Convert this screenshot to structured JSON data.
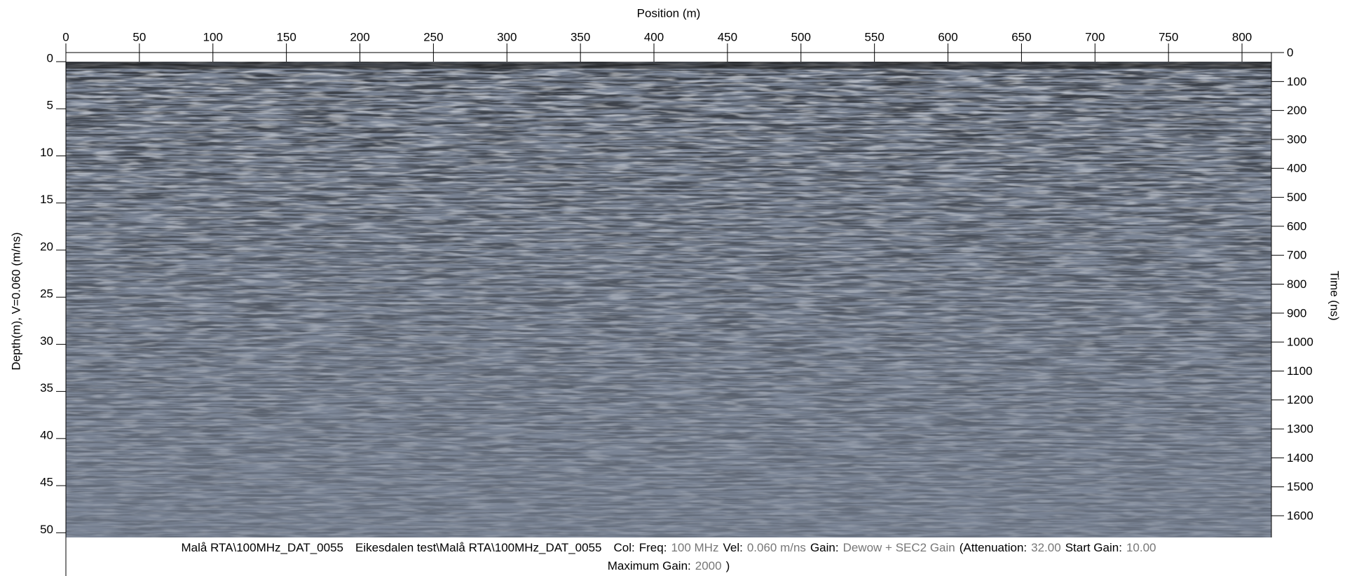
{
  "chart_data": {
    "type": "radargram",
    "title": "Position (m)",
    "ylabel": "Depth(m), V=0.060 (m/ns)",
    "y2label": "Time (ns)",
    "xlim": [
      0,
      820
    ],
    "xticks": [
      0,
      50,
      100,
      150,
      200,
      250,
      300,
      350,
      400,
      450,
      500,
      550,
      600,
      650,
      700,
      750,
      800
    ],
    "ylim": [
      0,
      50.5
    ],
    "yticks": [
      0,
      5,
      10,
      15,
      20,
      25,
      30,
      35,
      40,
      45,
      50
    ],
    "y2lim": [
      0,
      1675
    ],
    "y2ticks": [
      0,
      100,
      200,
      300,
      400,
      500,
      600,
      700,
      800,
      900,
      1000,
      1100,
      1200,
      1300,
      1400,
      1500,
      1600
    ],
    "color": "#7b8596",
    "footer": [
      [
        {
          "text": "Malå RTA\\100MHz_DAT_0055",
          "color": "#000000"
        },
        {
          "text": "Eikesdalen test\\Malå RTA\\100MHz_DAT_0055",
          "color": "#000000"
        },
        {
          "text": "Col:",
          "color": "#000000"
        },
        {
          "text": "Freq:",
          "color": "#000000"
        },
        {
          "text": "100 MHz",
          "color": "#777777"
        },
        {
          "text": "Vel:",
          "color": "#000000"
        },
        {
          "text": "0.060 m/ns",
          "color": "#777777"
        },
        {
          "text": "Gain:",
          "color": "#000000"
        },
        {
          "text": "Dewow + SEC2 Gain",
          "color": "#777777"
        },
        {
          "text": "(Attenuation:",
          "color": "#000000"
        },
        {
          "text": "32.00",
          "color": "#777777"
        },
        {
          "text": "Start Gain:",
          "color": "#000000"
        },
        {
          "text": "10.00",
          "color": "#777777"
        }
      ],
      [
        {
          "text": "Maximum Gain:",
          "color": "#000000"
        },
        {
          "text": "2000",
          "color": "#777777"
        },
        {
          "text": ")",
          "color": "#000000"
        }
      ]
    ]
  }
}
